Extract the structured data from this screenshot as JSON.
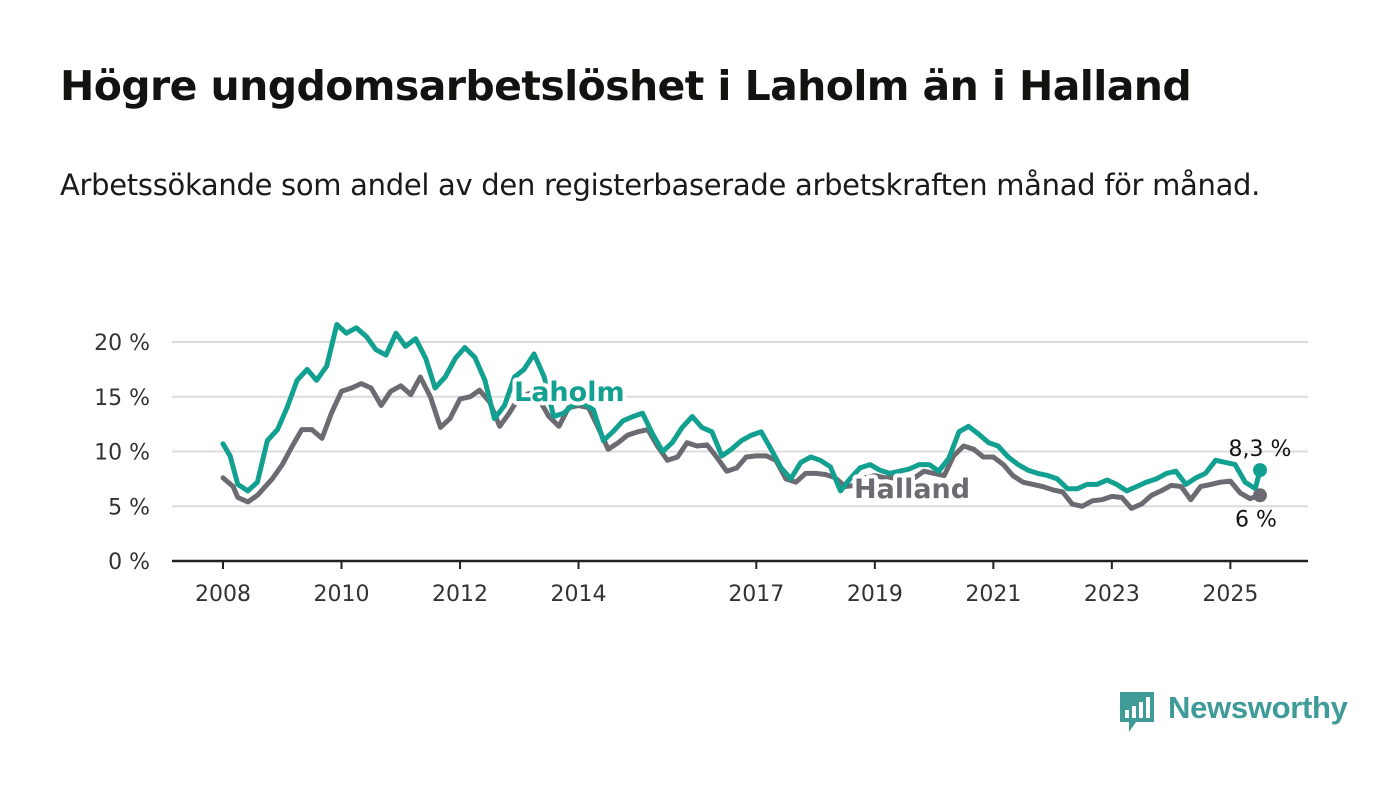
{
  "header": {
    "title": "Högre ungdomsarbetslöshet i Laholm än i Halland",
    "subtitle": "Arbetssökande som andel av den registerbaserade arbetskraften månad för månad."
  },
  "brand": {
    "name": "Newsworthy",
    "icon": "newsworthy-logo-icon",
    "color": "#3f9b98"
  },
  "colors": {
    "laholm": "#12a090",
    "halland": "#6d6b72",
    "grid": "#dcdcdc",
    "axis": "#222222"
  },
  "chart_data": {
    "type": "line",
    "y_unit": "%",
    "ylim": [
      0,
      20
    ],
    "xlim": [
      2008,
      2025.5
    ],
    "grid": true,
    "legend": "inline labels",
    "y_ticks": [
      {
        "value": 0,
        "label": "0 %"
      },
      {
        "value": 5,
        "label": "5 %"
      },
      {
        "value": 10,
        "label": "10 %"
      },
      {
        "value": 15,
        "label": "15 %"
      },
      {
        "value": 20,
        "label": "20 %"
      }
    ],
    "x_ticks": [
      {
        "value": 2008,
        "label": "2008"
      },
      {
        "value": 2010,
        "label": "2010"
      },
      {
        "value": 2012,
        "label": "2012"
      },
      {
        "value": 2014,
        "label": "2014"
      },
      {
        "value": 2017,
        "label": "2017"
      },
      {
        "value": 2019,
        "label": "2019"
      },
      {
        "value": 2021,
        "label": "2021"
      },
      {
        "value": 2023,
        "label": "2023"
      },
      {
        "value": 2025,
        "label": "2025"
      }
    ],
    "series": [
      {
        "name": "Halland",
        "color": "#6d6b72",
        "label_at": [
          2010.8,
          6.5
        ],
        "end_label": "6 %",
        "points": [
          [
            2008.0,
            7.6
          ],
          [
            2008.17,
            6.8
          ],
          [
            2008.25,
            5.8
          ],
          [
            2008.42,
            5.4
          ],
          [
            2008.58,
            6.0
          ],
          [
            2008.83,
            7.5
          ],
          [
            2009.0,
            8.8
          ],
          [
            2009.17,
            10.5
          ],
          [
            2009.33,
            12.0
          ],
          [
            2009.5,
            12.0
          ],
          [
            2009.67,
            11.2
          ],
          [
            2009.83,
            13.5
          ],
          [
            2010.0,
            15.5
          ],
          [
            2010.17,
            15.8
          ],
          [
            2010.33,
            16.2
          ],
          [
            2010.5,
            15.8
          ],
          [
            2010.67,
            14.2
          ],
          [
            2010.83,
            15.5
          ],
          [
            2011.0,
            16.0
          ],
          [
            2011.17,
            15.2
          ],
          [
            2011.33,
            16.8
          ],
          [
            2011.5,
            15.0
          ],
          [
            2011.67,
            12.2
          ],
          [
            2011.83,
            13.0
          ],
          [
            2012.0,
            14.8
          ],
          [
            2012.17,
            15.0
          ],
          [
            2012.33,
            15.6
          ],
          [
            2012.5,
            14.5
          ],
          [
            2012.67,
            12.3
          ],
          [
            2012.83,
            13.5
          ],
          [
            2013.0,
            15.0
          ],
          [
            2013.17,
            15.3
          ],
          [
            2013.33,
            14.8
          ],
          [
            2013.5,
            13.2
          ],
          [
            2013.67,
            12.3
          ],
          [
            2013.83,
            14.0
          ],
          [
            2014.0,
            14.2
          ],
          [
            2014.17,
            14.0
          ],
          [
            2014.33,
            12.2
          ],
          [
            2014.5,
            10.2
          ],
          [
            2014.67,
            10.8
          ],
          [
            2014.83,
            11.5
          ],
          [
            2015.0,
            11.8
          ],
          [
            2015.17,
            12.0
          ],
          [
            2015.33,
            10.5
          ],
          [
            2015.5,
            9.2
          ],
          [
            2015.67,
            9.5
          ],
          [
            2015.83,
            10.8
          ],
          [
            2016.0,
            10.5
          ],
          [
            2016.17,
            10.6
          ],
          [
            2016.33,
            9.5
          ],
          [
            2016.5,
            8.2
          ],
          [
            2016.67,
            8.5
          ],
          [
            2016.83,
            9.5
          ],
          [
            2017.0,
            9.6
          ],
          [
            2017.17,
            9.6
          ],
          [
            2017.33,
            9.2
          ],
          [
            2017.5,
            7.5
          ],
          [
            2017.67,
            7.2
          ],
          [
            2017.83,
            8.0
          ],
          [
            2018.0,
            8.0
          ],
          [
            2018.17,
            7.9
          ],
          [
            2018.33,
            7.6
          ],
          [
            2018.5,
            6.8
          ],
          [
            2018.67,
            6.9
          ],
          [
            2018.83,
            7.6
          ],
          [
            2019.0,
            7.8
          ],
          [
            2019.17,
            7.6
          ],
          [
            2019.33,
            7.6
          ],
          [
            2019.5,
            7.5
          ],
          [
            2019.67,
            7.6
          ],
          [
            2019.83,
            8.2
          ],
          [
            2020.0,
            8.0
          ],
          [
            2020.17,
            7.8
          ],
          [
            2020.33,
            9.6
          ],
          [
            2020.5,
            10.5
          ],
          [
            2020.67,
            10.2
          ],
          [
            2020.83,
            9.5
          ],
          [
            2021.0,
            9.5
          ],
          [
            2021.17,
            8.8
          ],
          [
            2021.33,
            7.8
          ],
          [
            2021.5,
            7.2
          ],
          [
            2021.67,
            7.0
          ],
          [
            2021.83,
            6.8
          ],
          [
            2022.0,
            6.5
          ],
          [
            2022.17,
            6.3
          ],
          [
            2022.33,
            5.2
          ],
          [
            2022.5,
            5.0
          ],
          [
            2022.67,
            5.5
          ],
          [
            2022.83,
            5.6
          ],
          [
            2023.0,
            5.9
          ],
          [
            2023.17,
            5.8
          ],
          [
            2023.33,
            4.8
          ],
          [
            2023.5,
            5.2
          ],
          [
            2023.67,
            6.0
          ],
          [
            2023.83,
            6.4
          ],
          [
            2024.0,
            6.9
          ],
          [
            2024.17,
            6.8
          ],
          [
            2024.33,
            5.6
          ],
          [
            2024.5,
            6.8
          ],
          [
            2024.67,
            7.0
          ],
          [
            2024.83,
            7.2
          ],
          [
            2025.0,
            7.3
          ],
          [
            2025.17,
            6.2
          ],
          [
            2025.33,
            5.7
          ],
          [
            2025.5,
            6.0
          ]
        ]
      },
      {
        "name": "Laholm",
        "color": "#12a090",
        "label_at": [
          2007.3,
          15.3
        ],
        "end_label": "8,3 %",
        "points": [
          [
            2008.0,
            10.7
          ],
          [
            2008.12,
            9.6
          ],
          [
            2008.25,
            7.0
          ],
          [
            2008.42,
            6.4
          ],
          [
            2008.58,
            7.2
          ],
          [
            2008.75,
            11.0
          ],
          [
            2008.92,
            12.0
          ],
          [
            2009.08,
            14.0
          ],
          [
            2009.25,
            16.5
          ],
          [
            2009.42,
            17.5
          ],
          [
            2009.58,
            16.5
          ],
          [
            2009.75,
            17.8
          ],
          [
            2009.92,
            21.6
          ],
          [
            2010.08,
            20.8
          ],
          [
            2010.25,
            21.3
          ],
          [
            2010.42,
            20.5
          ],
          [
            2010.58,
            19.3
          ],
          [
            2010.75,
            18.8
          ],
          [
            2010.92,
            20.8
          ],
          [
            2011.08,
            19.6
          ],
          [
            2011.25,
            20.3
          ],
          [
            2011.42,
            18.5
          ],
          [
            2011.58,
            15.8
          ],
          [
            2011.75,
            16.8
          ],
          [
            2011.92,
            18.5
          ],
          [
            2012.08,
            19.5
          ],
          [
            2012.25,
            18.6
          ],
          [
            2012.42,
            16.5
          ],
          [
            2012.58,
            13.0
          ],
          [
            2012.75,
            14.2
          ],
          [
            2012.92,
            16.8
          ],
          [
            2013.08,
            17.5
          ],
          [
            2013.25,
            18.9
          ],
          [
            2013.42,
            16.8
          ],
          [
            2013.58,
            13.2
          ],
          [
            2013.75,
            13.5
          ],
          [
            2013.92,
            14.3
          ],
          [
            2014.08,
            14.4
          ],
          [
            2014.25,
            13.8
          ],
          [
            2014.42,
            11.0
          ],
          [
            2014.58,
            11.8
          ],
          [
            2014.75,
            12.8
          ],
          [
            2014.92,
            13.2
          ],
          [
            2015.08,
            13.5
          ],
          [
            2015.25,
            11.6
          ],
          [
            2015.42,
            10.0
          ],
          [
            2015.58,
            10.8
          ],
          [
            2015.75,
            12.2
          ],
          [
            2015.92,
            13.2
          ],
          [
            2016.08,
            12.2
          ],
          [
            2016.25,
            11.8
          ],
          [
            2016.42,
            9.6
          ],
          [
            2016.58,
            10.2
          ],
          [
            2016.75,
            11.0
          ],
          [
            2016.92,
            11.5
          ],
          [
            2017.08,
            11.8
          ],
          [
            2017.25,
            10.2
          ],
          [
            2017.42,
            8.5
          ],
          [
            2017.58,
            7.5
          ],
          [
            2017.75,
            9.0
          ],
          [
            2017.92,
            9.5
          ],
          [
            2018.08,
            9.2
          ],
          [
            2018.25,
            8.6
          ],
          [
            2018.42,
            6.4
          ],
          [
            2018.58,
            7.5
          ],
          [
            2018.75,
            8.5
          ],
          [
            2018.92,
            8.8
          ],
          [
            2019.08,
            8.3
          ],
          [
            2019.25,
            8.0
          ],
          [
            2019.42,
            8.2
          ],
          [
            2019.58,
            8.4
          ],
          [
            2019.75,
            8.8
          ],
          [
            2019.92,
            8.8
          ],
          [
            2020.08,
            8.2
          ],
          [
            2020.25,
            9.4
          ],
          [
            2020.42,
            11.8
          ],
          [
            2020.58,
            12.3
          ],
          [
            2020.75,
            11.6
          ],
          [
            2020.92,
            10.8
          ],
          [
            2021.08,
            10.5
          ],
          [
            2021.25,
            9.5
          ],
          [
            2021.42,
            8.8
          ],
          [
            2021.58,
            8.3
          ],
          [
            2021.75,
            8.0
          ],
          [
            2021.92,
            7.8
          ],
          [
            2022.08,
            7.5
          ],
          [
            2022.25,
            6.6
          ],
          [
            2022.42,
            6.6
          ],
          [
            2022.58,
            7.0
          ],
          [
            2022.75,
            7.0
          ],
          [
            2022.92,
            7.4
          ],
          [
            2023.08,
            7.0
          ],
          [
            2023.25,
            6.4
          ],
          [
            2023.42,
            6.8
          ],
          [
            2023.58,
            7.2
          ],
          [
            2023.75,
            7.5
          ],
          [
            2023.92,
            8.0
          ],
          [
            2024.08,
            8.2
          ],
          [
            2024.25,
            7.0
          ],
          [
            2024.42,
            7.6
          ],
          [
            2024.58,
            8.0
          ],
          [
            2024.75,
            9.2
          ],
          [
            2024.92,
            9.0
          ],
          [
            2025.08,
            8.8
          ],
          [
            2025.25,
            7.2
          ],
          [
            2025.42,
            6.6
          ],
          [
            2025.5,
            8.3
          ]
        ]
      }
    ]
  }
}
